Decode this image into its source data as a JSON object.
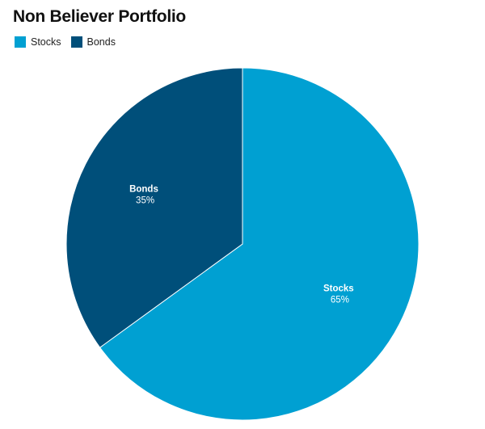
{
  "chart_data": {
    "type": "pie",
    "title": "Non Believer Portfolio",
    "legend_position": "top-left",
    "slices": [
      {
        "label": "Stocks",
        "value": 65,
        "value_label": "65%",
        "color": "#00a0d2"
      },
      {
        "label": "Bonds",
        "value": 35,
        "value_label": "35%",
        "color": "#004f7a"
      }
    ]
  }
}
